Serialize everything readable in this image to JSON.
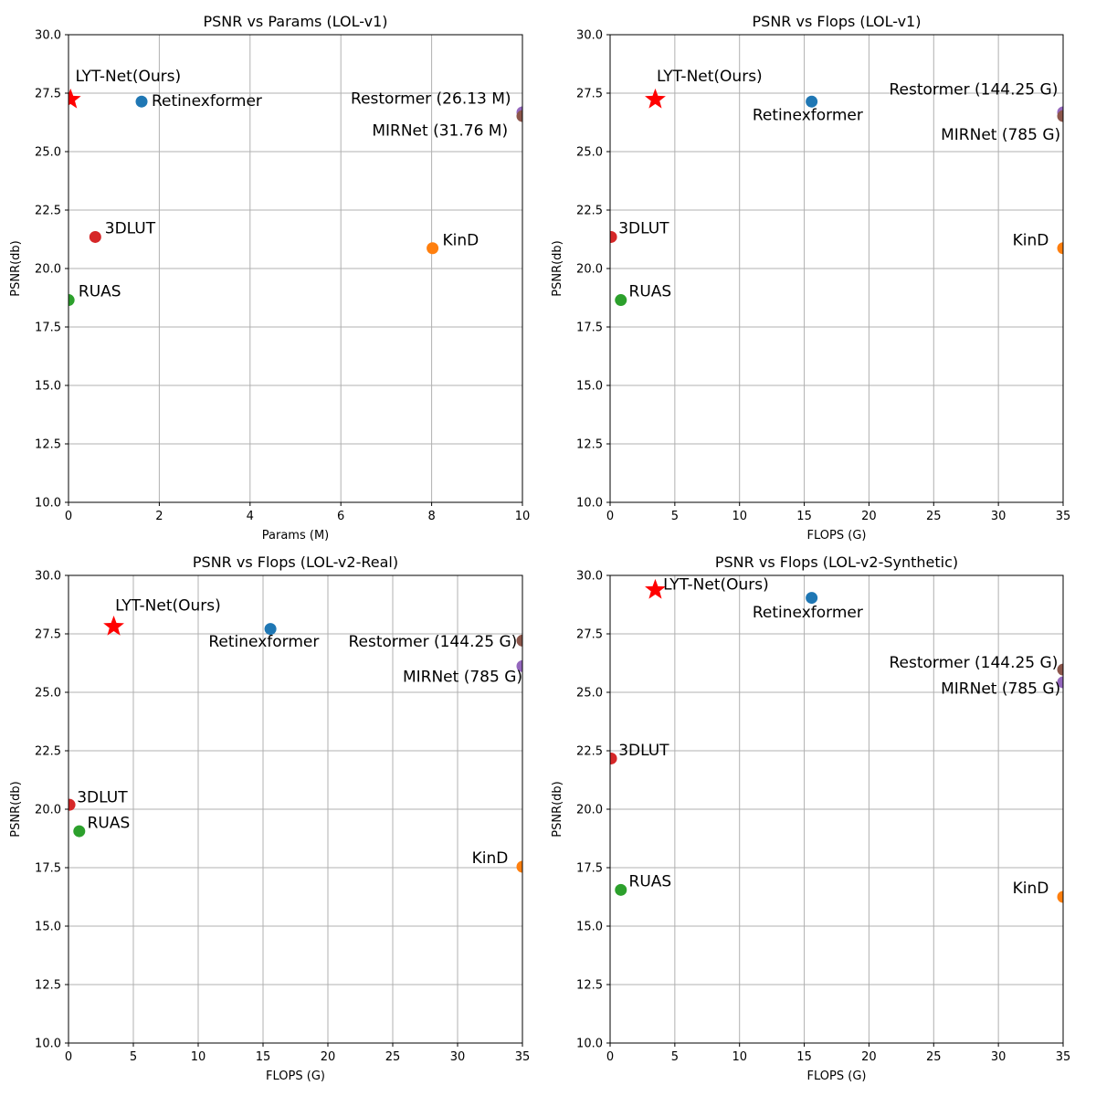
{
  "chart_data": [
    {
      "type": "scatter",
      "title": "PSNR vs Params (LOL-v1)",
      "xlabel": "Params (M)",
      "ylabel": "PSNR(db)",
      "xlim": [
        0,
        10
      ],
      "ylim": [
        10,
        30
      ],
      "xticks": [
        0,
        2,
        4,
        6,
        8,
        10
      ],
      "xtick_labels": [
        "0",
        "2",
        "4",
        "6",
        "8",
        "10"
      ],
      "yticks": [
        10,
        12.5,
        15,
        17.5,
        20,
        22.5,
        25,
        27.5,
        30
      ],
      "ytick_labels": [
        "10.0",
        "12.5",
        "15.0",
        "17.5",
        "20.0",
        "22.5",
        "25.0",
        "27.5",
        "30.0"
      ],
      "grid": true,
      "points": [
        {
          "name": "LYT-Net(Ours)",
          "x": 0.045,
          "y": 27.23,
          "marker": "star",
          "color": "#ff0000",
          "label": "LYT-Net(Ours)",
          "anchor": "start",
          "label_x": 0.15,
          "label_y": 28.0
        },
        {
          "name": "Retinexformer",
          "x": 1.61,
          "y": 27.14,
          "marker": "circle",
          "color": "#1f77b4",
          "label": "Retinexformer",
          "anchor": "start",
          "label_x": 1.83,
          "label_y": 26.95
        },
        {
          "name": "3DLUT",
          "x": 0.59,
          "y": 21.35,
          "marker": "circle",
          "color": "#d62728",
          "label": "3DLUT",
          "anchor": "start",
          "label_x": 0.8,
          "label_y": 21.5
        },
        {
          "name": "KinD",
          "x": 8.02,
          "y": 20.87,
          "marker": "circle",
          "color": "#ff7f0e",
          "label": "KinD",
          "anchor": "start",
          "label_x": 8.24,
          "label_y": 21.0
        },
        {
          "name": "RUAS",
          "x": 0.003,
          "y": 18.65,
          "marker": "circle",
          "color": "#2ca02c",
          "label": "RUAS",
          "anchor": "start",
          "label_x": 0.22,
          "label_y": 18.8
        },
        {
          "name": "Restormer",
          "x": 10,
          "y": 26.68,
          "marker": "circle",
          "color": "#9467bd",
          "label": "Restormer (26.13 M)",
          "anchor": "end",
          "label_x": 9.75,
          "label_y": 27.05
        },
        {
          "name": "MIRNet",
          "x": 10,
          "y": 26.52,
          "marker": "circle",
          "color": "#8c564b",
          "label": "MIRNet (31.76 M)",
          "anchor": "end",
          "label_x": 9.68,
          "label_y": 25.68
        }
      ]
    },
    {
      "type": "scatter",
      "title": "PSNR vs Flops (LOL-v1)",
      "xlabel": "FLOPS (G)",
      "ylabel": "PSNR(db)",
      "xlim": [
        0,
        35
      ],
      "ylim": [
        10,
        30
      ],
      "xticks": [
        0,
        5,
        10,
        15,
        20,
        25,
        30,
        35
      ],
      "xtick_labels": [
        "0",
        "5",
        "10",
        "15",
        "20",
        "25",
        "30",
        "35"
      ],
      "yticks": [
        10,
        12.5,
        15,
        17.5,
        20,
        22.5,
        25,
        27.5,
        30
      ],
      "ytick_labels": [
        "10.0",
        "12.5",
        "15.0",
        "17.5",
        "20.0",
        "22.5",
        "25.0",
        "27.5",
        "30.0"
      ],
      "grid": true,
      "points": [
        {
          "name": "LYT-Net(Ours)",
          "x": 3.49,
          "y": 27.23,
          "marker": "star",
          "color": "#ff0000",
          "label": "LYT-Net(Ours)",
          "anchor": "start",
          "label_x": 3.6,
          "label_y": 28.0
        },
        {
          "name": "Retinexformer",
          "x": 15.57,
          "y": 27.14,
          "marker": "circle",
          "color": "#1f77b4",
          "label": "Retinexformer",
          "anchor": "start",
          "label_x": 11.0,
          "label_y": 26.35
        },
        {
          "name": "3DLUT",
          "x": 0.075,
          "y": 21.35,
          "marker": "circle",
          "color": "#d62728",
          "label": "3DLUT",
          "anchor": "start",
          "label_x": 0.65,
          "label_y": 21.5
        },
        {
          "name": "KinD",
          "x": 35,
          "y": 20.87,
          "marker": "circle",
          "color": "#ff7f0e",
          "label": "KinD",
          "anchor": "end",
          "label_x": 33.9,
          "label_y": 21.0
        },
        {
          "name": "RUAS",
          "x": 0.83,
          "y": 18.65,
          "marker": "circle",
          "color": "#2ca02c",
          "label": "RUAS",
          "anchor": "start",
          "label_x": 1.45,
          "label_y": 18.8
        },
        {
          "name": "Restormer",
          "x": 35,
          "y": 26.68,
          "marker": "circle",
          "color": "#9467bd",
          "label": "Restormer (144.25 G)",
          "anchor": "end",
          "label_x": 34.6,
          "label_y": 27.45
        },
        {
          "name": "MIRNet",
          "x": 35,
          "y": 26.52,
          "marker": "circle",
          "color": "#8c564b",
          "label": "MIRNet (785 G)",
          "anchor": "end",
          "label_x": 34.8,
          "label_y": 25.5
        }
      ]
    },
    {
      "type": "scatter",
      "title": "PSNR vs Flops (LOL-v2-Real)",
      "xlabel": "FLOPS (G)",
      "ylabel": "PSNR(db)",
      "xlim": [
        0,
        35
      ],
      "ylim": [
        10,
        30
      ],
      "xticks": [
        0,
        5,
        10,
        15,
        20,
        25,
        30,
        35
      ],
      "xtick_labels": [
        "0",
        "5",
        "10",
        "15",
        "20",
        "25",
        "30",
        "35"
      ],
      "yticks": [
        10,
        12.5,
        15,
        17.5,
        20,
        22.5,
        25,
        27.5,
        30
      ],
      "ytick_labels": [
        "10.0",
        "12.5",
        "15.0",
        "17.5",
        "20.0",
        "22.5",
        "25.0",
        "27.5",
        "30.0"
      ],
      "grid": true,
      "points": [
        {
          "name": "LYT-Net(Ours)",
          "x": 3.49,
          "y": 27.81,
          "marker": "star",
          "color": "#ff0000",
          "label": "LYT-Net(Ours)",
          "anchor": "start",
          "label_x": 3.6,
          "label_y": 28.5
        },
        {
          "name": "Retinexformer",
          "x": 15.57,
          "y": 27.71,
          "marker": "circle",
          "color": "#1f77b4",
          "label": "Retinexformer",
          "anchor": "start",
          "label_x": 10.8,
          "label_y": 26.95
        },
        {
          "name": "3DLUT",
          "x": 0.075,
          "y": 20.19,
          "marker": "circle",
          "color": "#d62728",
          "label": "3DLUT",
          "anchor": "start",
          "label_x": 0.65,
          "label_y": 20.3
        },
        {
          "name": "RUAS",
          "x": 0.83,
          "y": 19.06,
          "marker": "circle",
          "color": "#2ca02c",
          "label": "RUAS",
          "anchor": "start",
          "label_x": 1.45,
          "label_y": 19.2
        },
        {
          "name": "KinD",
          "x": 35,
          "y": 17.54,
          "marker": "circle",
          "color": "#ff7f0e",
          "label": "KinD",
          "anchor": "end",
          "label_x": 33.9,
          "label_y": 17.7
        },
        {
          "name": "Restormer",
          "x": 35,
          "y": 27.21,
          "marker": "circle",
          "color": "#8c564b",
          "label": "Restormer (144.25 G)",
          "anchor": "end",
          "label_x": 34.6,
          "label_y": 26.95
        },
        {
          "name": "MIRNet",
          "x": 35,
          "y": 26.12,
          "marker": "circle",
          "color": "#9467bd",
          "label": "MIRNet (785 G)",
          "anchor": "end",
          "label_x": 35.0,
          "label_y": 25.45
        }
      ]
    },
    {
      "type": "scatter",
      "title": "PSNR vs Flops (LOL-v2-Synthetic)",
      "xlabel": "FLOPS (G)",
      "ylabel": "PSNR(db)",
      "xlim": [
        0,
        35
      ],
      "ylim": [
        10,
        30
      ],
      "xticks": [
        0,
        5,
        10,
        15,
        20,
        25,
        30,
        35
      ],
      "xtick_labels": [
        "0",
        "5",
        "10",
        "15",
        "20",
        "25",
        "30",
        "35"
      ],
      "yticks": [
        10,
        12.5,
        15,
        17.5,
        20,
        22.5,
        25,
        27.5,
        30
      ],
      "ytick_labels": [
        "10.0",
        "12.5",
        "15.0",
        "17.5",
        "20.0",
        "22.5",
        "25.0",
        "27.5",
        "30.0"
      ],
      "grid": true,
      "points": [
        {
          "name": "LYT-Net(Ours)",
          "x": 3.49,
          "y": 29.38,
          "marker": "star",
          "color": "#ff0000",
          "label": "LYT-Net(Ours)",
          "anchor": "start",
          "label_x": 4.1,
          "label_y": 29.4
        },
        {
          "name": "Retinexformer",
          "x": 15.57,
          "y": 29.04,
          "marker": "circle",
          "color": "#1f77b4",
          "label": "Retinexformer",
          "anchor": "start",
          "label_x": 11.0,
          "label_y": 28.2
        },
        {
          "name": "3DLUT",
          "x": 0.075,
          "y": 22.17,
          "marker": "circle",
          "color": "#d62728",
          "label": "3DLUT",
          "anchor": "start",
          "label_x": 0.65,
          "label_y": 22.3
        },
        {
          "name": "RUAS",
          "x": 0.83,
          "y": 16.55,
          "marker": "circle",
          "color": "#2ca02c",
          "label": "RUAS",
          "anchor": "start",
          "label_x": 1.45,
          "label_y": 16.7
        },
        {
          "name": "KinD",
          "x": 35,
          "y": 16.25,
          "marker": "circle",
          "color": "#ff7f0e",
          "label": "KinD",
          "anchor": "end",
          "label_x": 33.9,
          "label_y": 16.4
        },
        {
          "name": "Restormer",
          "x": 35,
          "y": 25.97,
          "marker": "circle",
          "color": "#8c564b",
          "label": "Restormer (144.25 G)",
          "anchor": "end",
          "label_x": 34.6,
          "label_y": 26.05
        },
        {
          "name": "MIRNet",
          "x": 35,
          "y": 25.43,
          "marker": "circle",
          "color": "#9467bd",
          "label": "MIRNet (785 G)",
          "anchor": "end",
          "label_x": 34.8,
          "label_y": 24.95
        }
      ]
    }
  ]
}
